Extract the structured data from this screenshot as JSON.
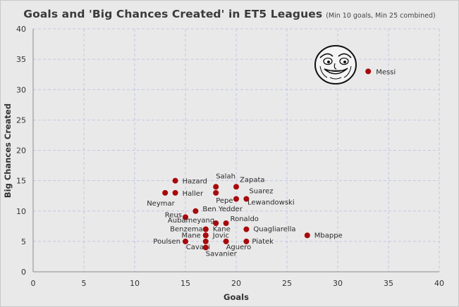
{
  "chart_data": {
    "type": "scatter",
    "title": "Goals and 'Big Chances Created' in ET5 Leagues",
    "subtitle": "(Min 10 goals, Min 25 combined)",
    "xlabel": "Goals",
    "ylabel": "Big Chances Created",
    "xlim": [
      0,
      40
    ],
    "ylim": [
      0,
      40
    ],
    "xticks": [
      0,
      5,
      10,
      15,
      20,
      25,
      30,
      35,
      40
    ],
    "yticks": [
      0,
      5,
      10,
      15,
      20,
      25,
      30,
      35,
      40
    ],
    "grid": true,
    "points": [
      {
        "name": "Messi",
        "x": 33,
        "y": 33
      },
      {
        "name": "Hazard",
        "x": 14,
        "y": 15
      },
      {
        "name": "Haller",
        "x": 14,
        "y": 13
      },
      {
        "name": "Neymar",
        "x": 13,
        "y": 13
      },
      {
        "name": "Salah",
        "x": 18,
        "y": 14
      },
      {
        "name": "Pepe",
        "x": 18,
        "y": 13
      },
      {
        "name": "Zapata",
        "x": 20,
        "y": 14
      },
      {
        "name": "Suarez",
        "x": 21,
        "y": 12
      },
      {
        "name": "Lewandowski",
        "x": 20,
        "y": 12
      },
      {
        "name": "Ben Yedder",
        "x": 16,
        "y": 10
      },
      {
        "name": "Reus",
        "x": 15,
        "y": 9
      },
      {
        "name": "Aubameyang",
        "x": 18,
        "y": 8
      },
      {
        "name": "Ronaldo",
        "x": 19,
        "y": 8
      },
      {
        "name": "Benzema",
        "x": 17,
        "y": 7
      },
      {
        "name": "Kane",
        "x": 17,
        "y": 7
      },
      {
        "name": "Quagliarella",
        "x": 21,
        "y": 7
      },
      {
        "name": "Mane",
        "x": 17,
        "y": 6
      },
      {
        "name": "Jovic",
        "x": 17,
        "y": 6
      },
      {
        "name": "Mbappe",
        "x": 27,
        "y": 6
      },
      {
        "name": "Poulsen",
        "x": 15,
        "y": 5
      },
      {
        "name": "Cavani",
        "x": 17,
        "y": 5
      },
      {
        "name": "Aguero",
        "x": 19,
        "y": 5
      },
      {
        "name": "Piatek",
        "x": 21,
        "y": 5
      },
      {
        "name": "Savanier",
        "x": 17,
        "y": 4
      }
    ]
  },
  "colors": {
    "background": "#e9e9e9",
    "dot": "#a8090b",
    "grid": "#b9bde4"
  },
  "icons": {
    "meme_face": "forever-alone-face-icon"
  }
}
